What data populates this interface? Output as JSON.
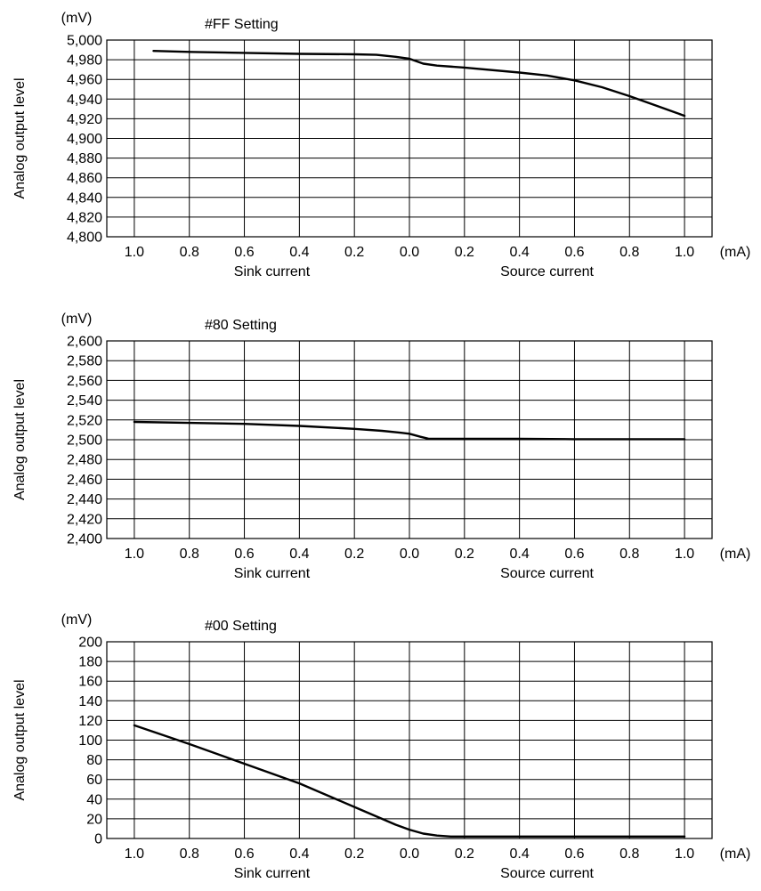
{
  "chart_data": [
    {
      "type": "line",
      "title": "#FF Setting",
      "y_unit": "(mV)",
      "ylabel": "Analog output level",
      "x_unit": "(mA)",
      "x_axis_left_label": "Sink current",
      "x_axis_right_label": "Source current",
      "xlim": [
        -1.1,
        1.1
      ],
      "x_ticks": [
        -1.0,
        -0.8,
        -0.6,
        -0.4,
        -0.2,
        0.0,
        0.2,
        0.4,
        0.6,
        0.8,
        1.0
      ],
      "x_tick_labels": [
        "1.0",
        "0.8",
        "0.6",
        "0.4",
        "0.2",
        "0.0",
        "0.2",
        "0.4",
        "0.6",
        "0.8",
        "1.0"
      ],
      "ylim": [
        4800,
        5000
      ],
      "y_ticks": [
        4800,
        4820,
        4840,
        4860,
        4880,
        4900,
        4920,
        4940,
        4960,
        4980,
        5000
      ],
      "y_tick_labels": [
        "4,800",
        "4,820",
        "4,840",
        "4,860",
        "4,880",
        "4,900",
        "4,920",
        "4,940",
        "4,960",
        "4,980",
        "5,000"
      ],
      "grid": true,
      "series": [
        {
          "x": [
            -0.93,
            -0.8,
            -0.6,
            -0.4,
            -0.2,
            -0.12,
            -0.05,
            0.0,
            0.05,
            0.1,
            0.2,
            0.4,
            0.5,
            0.6,
            0.7,
            0.8,
            0.9,
            1.0
          ],
          "y": [
            4989,
            4988,
            4987,
            4986,
            4985.5,
            4985,
            4983,
            4981,
            4976,
            4974,
            4972,
            4967,
            4964,
            4959,
            4952,
            4943,
            4933,
            4923
          ]
        }
      ]
    },
    {
      "type": "line",
      "title": "#80 Setting",
      "y_unit": "(mV)",
      "ylabel": "Analog output level",
      "x_unit": "(mA)",
      "x_axis_left_label": "Sink current",
      "x_axis_right_label": "Source current",
      "xlim": [
        -1.1,
        1.1
      ],
      "x_ticks": [
        -1.0,
        -0.8,
        -0.6,
        -0.4,
        -0.2,
        0.0,
        0.2,
        0.4,
        0.6,
        0.8,
        1.0
      ],
      "x_tick_labels": [
        "1.0",
        "0.8",
        "0.6",
        "0.4",
        "0.2",
        "0.0",
        "0.2",
        "0.4",
        "0.6",
        "0.8",
        "1.0"
      ],
      "ylim": [
        2400,
        2600
      ],
      "y_ticks": [
        2400,
        2420,
        2440,
        2460,
        2480,
        2500,
        2520,
        2540,
        2560,
        2580,
        2600
      ],
      "y_tick_labels": [
        "2,400",
        "2,420",
        "2,440",
        "2,460",
        "2,480",
        "2,500",
        "2,520",
        "2,540",
        "2,560",
        "2,580",
        "2,600"
      ],
      "grid": true,
      "series": [
        {
          "x": [
            -1.0,
            -0.8,
            -0.6,
            -0.4,
            -0.2,
            -0.1,
            -0.03,
            0.0,
            0.04,
            0.07,
            0.1,
            0.2,
            0.4,
            0.6,
            0.8,
            1.0
          ],
          "y": [
            2518,
            2517,
            2516,
            2514,
            2511,
            2509,
            2507,
            2506,
            2503,
            2501,
            2501,
            2501,
            2501,
            2500.5,
            2500.5,
            2500.5
          ]
        }
      ]
    },
    {
      "type": "line",
      "title": "#00 Setting",
      "y_unit": "(mV)",
      "ylabel": "Analog output level",
      "x_unit": "(mA)",
      "x_axis_left_label": "Sink current",
      "x_axis_right_label": "Source current",
      "xlim": [
        -1.1,
        1.1
      ],
      "x_ticks": [
        -1.0,
        -0.8,
        -0.6,
        -0.4,
        -0.2,
        0.0,
        0.2,
        0.4,
        0.6,
        0.8,
        1.0
      ],
      "x_tick_labels": [
        "1.0",
        "0.8",
        "0.6",
        "0.4",
        "0.2",
        "0.0",
        "0.2",
        "0.4",
        "0.6",
        "0.8",
        "1.0"
      ],
      "ylim": [
        0,
        200
      ],
      "y_ticks": [
        0,
        20,
        40,
        60,
        80,
        100,
        120,
        140,
        160,
        180,
        200
      ],
      "y_tick_labels": [
        "0",
        "20",
        "40",
        "60",
        "80",
        "100",
        "120",
        "140",
        "160",
        "180",
        "200"
      ],
      "grid": true,
      "series": [
        {
          "x": [
            -1.0,
            -0.8,
            -0.6,
            -0.4,
            -0.3,
            -0.2,
            -0.1,
            -0.05,
            0.0,
            0.05,
            0.1,
            0.15,
            0.2,
            0.4,
            0.6,
            0.8,
            1.0
          ],
          "y": [
            115,
            96,
            76,
            56,
            44,
            32,
            20,
            14,
            9,
            5,
            3,
            2,
            2,
            2,
            2,
            2,
            2
          ]
        }
      ]
    }
  ]
}
